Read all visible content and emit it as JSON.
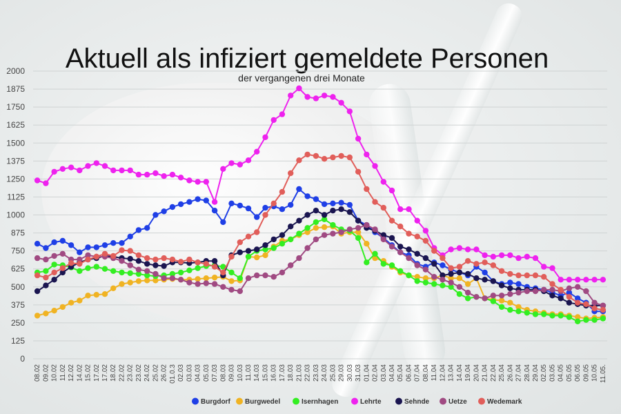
{
  "chart_data": {
    "type": "line",
    "title": "Aktuell als infiziert gemeldete Personen",
    "subtitle": "der vergangenen drei Monate",
    "ylim": [
      0,
      2000
    ],
    "yticks": [
      0,
      125,
      250,
      375,
      500,
      625,
      750,
      875,
      1000,
      1125,
      1250,
      1375,
      1500,
      1625,
      1750,
      1875,
      2000
    ],
    "grid": true,
    "legend_position": "bottom",
    "x": [
      "08.02",
      "09.02",
      "10.02",
      "11.02",
      "12.02",
      "14.02",
      "15.02",
      "17.02",
      "17.02",
      "18.02",
      "22.02",
      "23.02",
      "23.02",
      "24.02",
      "25.02",
      "26.02",
      "01.0.3",
      "02.03",
      "03.03",
      "04.03",
      "05.03",
      "07.03",
      "08.03",
      "09.03",
      "10.03",
      "11.03",
      "14.03",
      "15.03",
      "16.03",
      "17.03",
      "18.03",
      "21.03",
      "22.03",
      "23.03",
      "24.03",
      "25.03",
      "29.03",
      "30.03",
      "31.03",
      "01.04",
      "02.04",
      "03.04",
      "04.04",
      "05.04",
      "06.04",
      "07.04",
      "08.04",
      "11.04",
      "12.04",
      "13.04",
      "14.04",
      "19.04",
      "20.04",
      "21.04",
      "22.04",
      "25.04",
      "26.04",
      "27.04",
      "28.04",
      "29.04",
      "02.05",
      "03.05",
      "04.05",
      "05.05",
      "06.05",
      "09.05",
      "10.05",
      "11.05."
    ],
    "series": [
      {
        "name": "Burgdorf",
        "color": "#1f3fe6",
        "values": [
          800,
          770,
          810,
          820,
          790,
          740,
          775,
          775,
          790,
          805,
          805,
          850,
          895,
          910,
          1000,
          1025,
          1055,
          1075,
          1090,
          1110,
          1100,
          1030,
          950,
          1080,
          1065,
          1045,
          985,
          1050,
          1060,
          1040,
          1070,
          1180,
          1130,
          1110,
          1075,
          1080,
          1085,
          1070,
          960,
          930,
          880,
          840,
          790,
          740,
          720,
          660,
          640,
          670,
          650,
          620,
          600,
          580,
          640,
          600,
          540,
          520,
          530,
          520,
          500,
          490,
          480,
          460,
          440,
          460,
          420,
          390,
          330,
          330
        ]
      },
      {
        "name": "Burgwedel",
        "color": "#f0b323",
        "values": [
          300,
          315,
          335,
          360,
          390,
          405,
          440,
          445,
          450,
          490,
          520,
          530,
          540,
          545,
          545,
          550,
          555,
          550,
          550,
          555,
          560,
          565,
          570,
          540,
          545,
          710,
          705,
          720,
          780,
          820,
          830,
          860,
          880,
          910,
          915,
          920,
          870,
          880,
          880,
          800,
          700,
          680,
          640,
          600,
          580,
          570,
          560,
          560,
          580,
          560,
          560,
          520,
          560,
          420,
          410,
          405,
          390,
          360,
          340,
          330,
          320,
          310,
          310,
          300,
          290,
          280,
          285,
          290
        ]
      },
      {
        "name": "Isernhagen",
        "color": "#33ee22",
        "values": [
          600,
          610,
          655,
          650,
          635,
          610,
          630,
          640,
          625,
          610,
          600,
          595,
          590,
          580,
          575,
          580,
          590,
          600,
          615,
          630,
          645,
          650,
          640,
          600,
          560,
          710,
          750,
          760,
          770,
          800,
          830,
          870,
          910,
          950,
          970,
          930,
          900,
          890,
          840,
          670,
          730,
          660,
          650,
          610,
          580,
          540,
          530,
          520,
          510,
          500,
          450,
          420,
          430,
          420,
          400,
          360,
          340,
          330,
          320,
          310,
          310,
          300,
          300,
          290,
          260,
          270,
          270,
          280
        ]
      },
      {
        "name": "Lehrte",
        "color": "#ee22ee",
        "values": [
          1240,
          1220,
          1300,
          1320,
          1330,
          1310,
          1340,
          1360,
          1340,
          1310,
          1310,
          1310,
          1280,
          1280,
          1290,
          1270,
          1280,
          1260,
          1240,
          1230,
          1230,
          1090,
          1320,
          1360,
          1350,
          1380,
          1440,
          1540,
          1660,
          1700,
          1830,
          1880,
          1820,
          1810,
          1830,
          1820,
          1780,
          1720,
          1530,
          1420,
          1340,
          1230,
          1170,
          1040,
          1040,
          960,
          890,
          770,
          720,
          760,
          770,
          760,
          760,
          720,
          710,
          720,
          720,
          700,
          710,
          700,
          640,
          630,
          550,
          550,
          550,
          550,
          550,
          550
        ]
      },
      {
        "name": "Sehnde",
        "color": "#1a1550",
        "values": [
          470,
          510,
          550,
          600,
          640,
          670,
          690,
          700,
          715,
          710,
          700,
          695,
          680,
          660,
          650,
          645,
          670,
          670,
          665,
          670,
          680,
          680,
          580,
          720,
          740,
          750,
          760,
          790,
          830,
          860,
          920,
          960,
          1000,
          1030,
          1000,
          1030,
          1040,
          1020,
          960,
          910,
          890,
          860,
          840,
          780,
          760,
          730,
          700,
          660,
          580,
          590,
          600,
          590,
          560,
          550,
          540,
          510,
          490,
          480,
          480,
          480,
          470,
          440,
          420,
          390,
          380,
          370,
          370,
          370
        ]
      },
      {
        "name": "Uetze",
        "color": "#a04a82",
        "values": [
          700,
          690,
          715,
          730,
          690,
          690,
          720,
          710,
          710,
          700,
          680,
          650,
          620,
          610,
          590,
          560,
          560,
          550,
          530,
          520,
          525,
          520,
          500,
          480,
          470,
          560,
          580,
          580,
          570,
          600,
          650,
          700,
          770,
          830,
          860,
          870,
          880,
          900,
          910,
          930,
          900,
          830,
          780,
          740,
          700,
          650,
          620,
          570,
          550,
          530,
          500,
          460,
          430,
          420,
          440,
          440,
          450,
          460,
          470,
          470,
          480,
          480,
          470,
          490,
          500,
          470,
          390,
          370
        ]
      },
      {
        "name": "Wedemark",
        "color": "#e15e5a",
        "values": [
          580,
          565,
          600,
          630,
          665,
          660,
          690,
          710,
          730,
          715,
          755,
          750,
          720,
          700,
          690,
          700,
          690,
          675,
          690,
          670,
          660,
          640,
          600,
          710,
          810,
          850,
          880,
          1000,
          1080,
          1160,
          1290,
          1380,
          1420,
          1410,
          1390,
          1400,
          1410,
          1400,
          1300,
          1180,
          1090,
          1050,
          960,
          920,
          870,
          850,
          820,
          750,
          700,
          630,
          640,
          680,
          660,
          670,
          650,
          610,
          590,
          580,
          580,
          580,
          570,
          520,
          480,
          430,
          390,
          380,
          350,
          340
        ]
      }
    ]
  }
}
